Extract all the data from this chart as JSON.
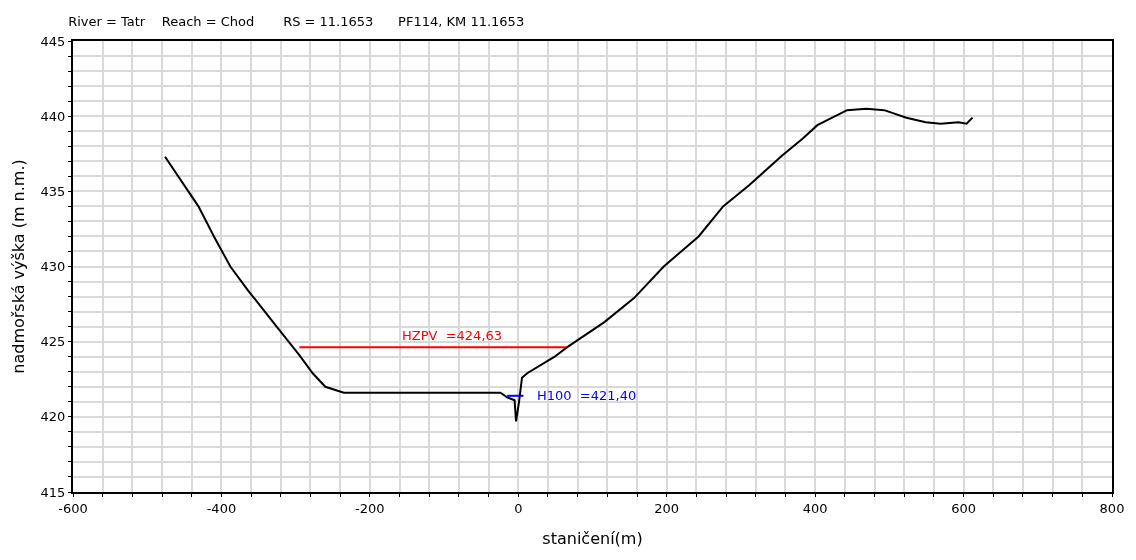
{
  "chart_data": {
    "type": "line",
    "title": "River = Tatr    Reach = Chod       RS = 11.1653      PF114, KM 11.1653",
    "xlabel": "staničení(m)",
    "ylabel": "nadmořská výška (m n.m.)",
    "series": [
      {
        "color": "#000000",
        "x": [
          -476,
          -431,
          -409,
          -388,
          -364,
          -324,
          -295,
          -277,
          -260,
          -235,
          -24,
          -15,
          -5,
          -3,
          1,
          5,
          12,
          49,
          65,
          116,
          156,
          196,
          243,
          276,
          311,
          356,
          383,
          403,
          443,
          469,
          493,
          523,
          549,
          569,
          593,
          604,
          612
        ],
        "values": [
          437.3,
          434.0,
          431.9,
          430.0,
          428.4,
          425.9,
          424.1,
          422.9,
          422.0,
          421.6,
          421.6,
          421.3,
          421.1,
          419.7,
          421.0,
          422.6,
          422.9,
          424.0,
          424.6,
          426.3,
          427.9,
          430.0,
          432.0,
          434.0,
          435.4,
          437.4,
          438.5,
          439.4,
          440.4,
          440.5,
          440.4,
          439.9,
          439.6,
          439.5,
          439.6,
          439.5,
          439.9
        ]
      },
      {
        "color": "#ff0000",
        "x": [
          -295,
          65
        ],
        "values": [
          424.63,
          424.63
        ]
      },
      {
        "color": "#0000ff",
        "x": [
          -15,
          7
        ],
        "values": [
          421.4,
          421.4
        ]
      }
    ],
    "annotations": [
      {
        "text": "HZPV  =424,63",
        "x": -89,
        "y": 424.63
      },
      {
        "text": "H100  =421,40",
        "x": 7,
        "y": 421.4
      }
    ],
    "xlim": [
      -600,
      800
    ],
    "ylim": [
      415,
      445
    ],
    "xticks": [
      -600,
      {
        "value": -560,
        "label": null
      },
      {
        "value": -520,
        "label": null
      },
      {
        "value": -480,
        "label": null
      },
      {
        "value": -440,
        "label": null
      },
      -400,
      {
        "value": -360,
        "label": null
      },
      {
        "value": -320,
        "label": null
      },
      {
        "value": -280,
        "label": null
      },
      {
        "value": -240,
        "label": null
      },
      -200,
      {
        "value": -160,
        "label": null
      },
      {
        "value": -120,
        "label": null
      },
      {
        "value": -80,
        "label": null
      },
      {
        "value": -40,
        "label": null
      },
      0,
      {
        "value": 40,
        "label": null
      },
      {
        "value": 80,
        "label": null
      },
      {
        "value": 120,
        "label": null
      },
      {
        "value": 160,
        "label": null
      },
      200,
      {
        "value": 240,
        "label": null
      },
      {
        "value": 280,
        "label": null
      },
      {
        "value": 320,
        "label": null
      },
      {
        "value": 360,
        "label": null
      },
      400,
      {
        "value": 440,
        "label": null
      },
      {
        "value": 480,
        "label": null
      },
      {
        "value": 520,
        "label": null
      },
      {
        "value": 560,
        "label": null
      },
      600,
      {
        "value": 640,
        "label": null
      },
      {
        "value": 680,
        "label": null
      },
      {
        "value": 720,
        "label": null
      },
      {
        "value": 760,
        "label": null
      },
      800
    ],
    "yticks": [
      415,
      {
        "value": 416,
        "label": null
      },
      {
        "value": 417,
        "label": null
      },
      {
        "value": 418,
        "label": null
      },
      {
        "value": 419,
        "label": null
      },
      420,
      {
        "value": 421,
        "label": null
      },
      {
        "value": 422,
        "label": null
      },
      {
        "value": 423,
        "label": null
      },
      {
        "value": 424,
        "label": null
      },
      425,
      {
        "value": 426,
        "label": null
      },
      {
        "value": 427,
        "label": null
      },
      {
        "value": 428,
        "label": null
      },
      {
        "value": 429,
        "label": null
      },
      430,
      {
        "value": 431,
        "label": null
      },
      {
        "value": 432,
        "label": null
      },
      {
        "value": 433,
        "label": null
      },
      {
        "value": 434,
        "label": null
      },
      435,
      {
        "value": 436,
        "label": null
      },
      {
        "value": 437,
        "label": null
      },
      {
        "value": 438,
        "label": null
      },
      {
        "value": 439,
        "label": null
      },
      440,
      {
        "value": 441,
        "label": null
      },
      {
        "value": 442,
        "label": null
      },
      {
        "value": 443,
        "label": null
      },
      {
        "value": 444,
        "label": null
      },
      445
    ],
    "grid": true,
    "marker": "none",
    "line_style": "solid"
  }
}
